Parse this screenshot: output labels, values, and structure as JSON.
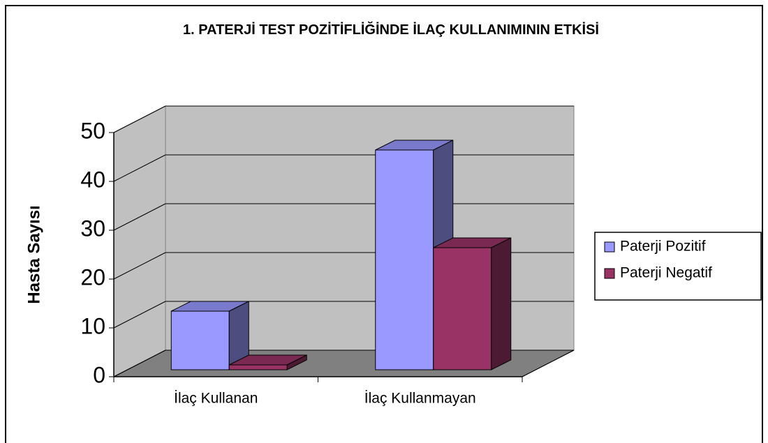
{
  "chart_data": {
    "type": "bar3d",
    "title": "1. PATERJİ TEST POZİTİFLİĞİNDE İLAÇ KULLANIMININ ETKİSİ",
    "y_label": "Hasta Sayısı",
    "categories": [
      "İlaç Kullanan",
      "İlaç Kullanmayan"
    ],
    "series": [
      {
        "name": "Paterji Pozitif",
        "color": "#9999ff",
        "values": [
          12,
          45
        ]
      },
      {
        "name": "Paterji Negatif",
        "color": "#993366",
        "values": [
          1,
          25
        ]
      }
    ],
    "ylim": [
      0,
      50
    ],
    "yticks": [
      0,
      10,
      20,
      30,
      40,
      50
    ],
    "grid": true,
    "legend": "right"
  }
}
